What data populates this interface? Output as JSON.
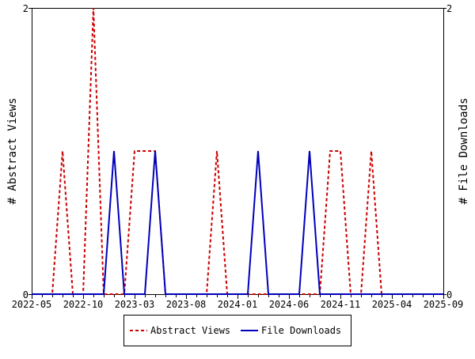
{
  "chart_data": {
    "type": "line",
    "title": "",
    "xlabel": "",
    "ylabel_left": "# Abstract Views",
    "ylabel_right": "# File Downloads",
    "x_start": "2022-05",
    "x_months": 40,
    "x_tick_labels": [
      "2022-05",
      "2022-10",
      "2023-03",
      "2023-08",
      "2024-01",
      "2024-06",
      "2024-11",
      "2025-04",
      "2025-09"
    ],
    "ylim": [
      0,
      2
    ],
    "y_tick_labels_left": [
      "0",
      "2"
    ],
    "y_tick_labels_right": [
      "0",
      "2"
    ],
    "legend_placement": "bottom",
    "series": [
      {
        "name": "Abstract Views",
        "color": "#cc0000",
        "style": "dashed",
        "values": [
          0,
          0,
          0,
          1,
          0,
          0,
          2,
          0,
          0,
          0,
          1,
          1,
          1,
          0,
          0,
          0,
          0,
          0,
          1,
          0,
          0,
          0,
          0,
          0,
          0,
          0,
          0,
          0,
          0,
          1,
          1,
          0,
          0,
          1,
          0,
          0,
          0,
          0,
          0,
          0,
          0
        ]
      },
      {
        "name": "File Downloads",
        "color": "#0000bb",
        "style": "solid",
        "values": [
          0,
          0,
          0,
          0,
          0,
          0,
          0,
          0,
          1,
          0,
          0,
          0,
          1,
          0,
          0,
          0,
          0,
          0,
          0,
          0,
          0,
          0,
          1,
          0,
          0,
          0,
          0,
          1,
          0,
          0,
          0,
          0,
          0,
          0,
          0,
          0,
          0,
          0,
          0,
          0,
          0
        ]
      }
    ]
  }
}
